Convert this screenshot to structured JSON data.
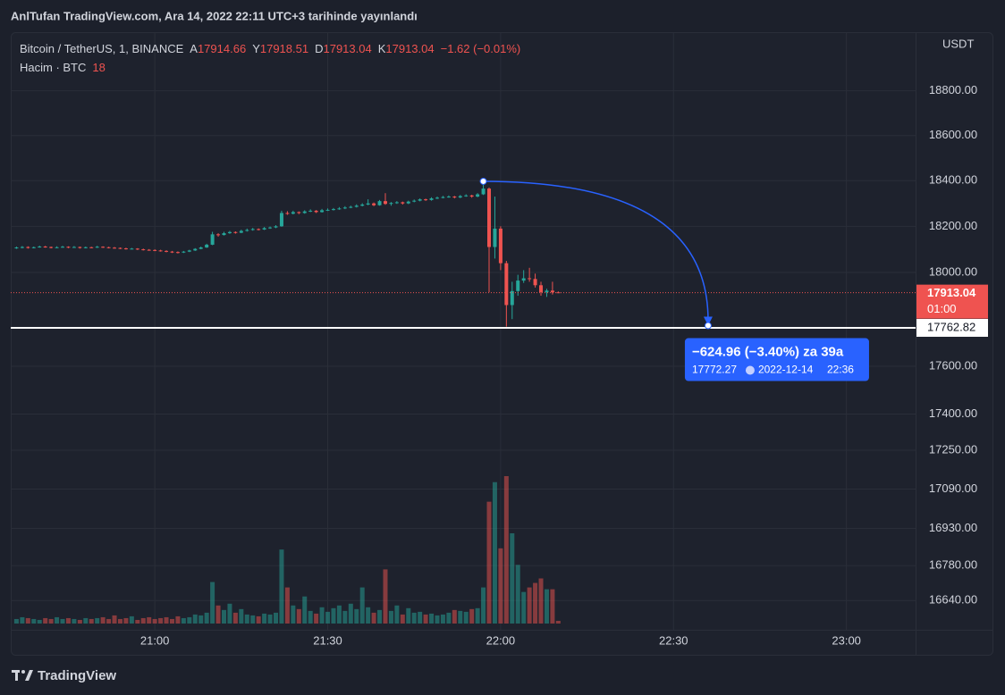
{
  "header": "AnlTufan TradingView.com, Ara 14, 2022 22:11 UTC+3 tarihinde yayınlandı",
  "footer": "TradingView",
  "chart_data": {
    "type": "candlestick",
    "symbol": "Bitcoin / TetherUS, 1, BINANCE",
    "ohlc_labels": [
      "A",
      "Y",
      "D",
      "K"
    ],
    "change": "−1.62 (−0.01%)",
    "volume_label": "Hacim · BTC",
    "y_axis_label": "USDT",
    "x": [
      "20:36",
      "20:37",
      "20:38",
      "20:39",
      "20:40",
      "20:41",
      "20:42",
      "20:43",
      "20:44",
      "20:45",
      "20:46",
      "20:47",
      "20:48",
      "20:49",
      "20:50",
      "20:51",
      "20:52",
      "20:53",
      "20:54",
      "20:55",
      "20:56",
      "20:57",
      "20:58",
      "20:59",
      "21:00",
      "21:01",
      "21:02",
      "21:03",
      "21:04",
      "21:05",
      "21:06",
      "21:07",
      "21:08",
      "21:09",
      "21:10",
      "21:11",
      "21:12",
      "21:13",
      "21:14",
      "21:15",
      "21:16",
      "21:17",
      "21:18",
      "21:19",
      "21:20",
      "21:21",
      "21:22",
      "21:23",
      "21:24",
      "21:25",
      "21:26",
      "21:27",
      "21:28",
      "21:29",
      "21:30",
      "21:31",
      "21:32",
      "21:33",
      "21:34",
      "21:35",
      "21:36",
      "21:37",
      "21:38",
      "21:39",
      "21:40",
      "21:41",
      "21:42",
      "21:43",
      "21:44",
      "21:45",
      "21:46",
      "21:47",
      "21:48",
      "21:49",
      "21:50",
      "21:51",
      "21:52",
      "21:53",
      "21:54",
      "21:55",
      "21:56",
      "21:57",
      "21:58",
      "21:59",
      "22:00",
      "22:01",
      "22:02",
      "22:03",
      "22:04",
      "22:05",
      "22:06",
      "22:07",
      "22:08",
      "22:09",
      "22:10"
    ],
    "ohlc": [
      [
        18105,
        18112,
        18102,
        18108
      ],
      [
        18108,
        18114,
        18104,
        18110
      ],
      [
        18110,
        18113,
        18103,
        18106
      ],
      [
        18106,
        18112,
        18104,
        18109
      ],
      [
        18109,
        18116,
        18107,
        18112
      ],
      [
        18112,
        18115,
        18107,
        18110
      ],
      [
        18110,
        18112,
        18104,
        18107
      ],
      [
        18107,
        18113,
        18105,
        18109
      ],
      [
        18109,
        18115,
        18107,
        18111
      ],
      [
        18111,
        18113,
        18105,
        18108
      ],
      [
        18108,
        18114,
        18106,
        18110
      ],
      [
        18110,
        18112,
        18103,
        18106
      ],
      [
        18106,
        18112,
        18104,
        18109
      ],
      [
        18109,
        18111,
        18105,
        18108
      ],
      [
        18108,
        18115,
        18106,
        18111
      ],
      [
        18111,
        18113,
        18106,
        18109
      ],
      [
        18109,
        18111,
        18104,
        18107
      ],
      [
        18107,
        18110,
        18103,
        18106
      ],
      [
        18106,
        18108,
        18101,
        18104
      ],
      [
        18104,
        18107,
        18099,
        18102
      ],
      [
        18102,
        18106,
        18100,
        18103
      ],
      [
        18103,
        18105,
        18097,
        18100
      ],
      [
        18100,
        18103,
        18095,
        18098
      ],
      [
        18098,
        18101,
        18094,
        18097
      ],
      [
        18097,
        18100,
        18092,
        18095
      ],
      [
        18095,
        18098,
        18090,
        18093
      ],
      [
        18093,
        18096,
        18087,
        18090
      ],
      [
        18090,
        18093,
        18084,
        18088
      ],
      [
        18088,
        18091,
        18082,
        18086
      ],
      [
        18086,
        18093,
        18084,
        18090
      ],
      [
        18090,
        18098,
        18088,
        18095
      ],
      [
        18095,
        18105,
        18093,
        18102
      ],
      [
        18102,
        18112,
        18100,
        18108
      ],
      [
        18108,
        18124,
        18106,
        18120
      ],
      [
        18120,
        18176,
        18118,
        18165
      ],
      [
        18165,
        18170,
        18155,
        18162
      ],
      [
        18162,
        18176,
        18160,
        18170
      ],
      [
        18170,
        18180,
        18167,
        18175
      ],
      [
        18175,
        18178,
        18168,
        18172
      ],
      [
        18172,
        18185,
        18170,
        18180
      ],
      [
        18180,
        18190,
        18177,
        18184
      ],
      [
        18184,
        18193,
        18181,
        18188
      ],
      [
        18188,
        18191,
        18182,
        18186
      ],
      [
        18186,
        18197,
        18184,
        18192
      ],
      [
        18192,
        18199,
        18189,
        18195
      ],
      [
        18195,
        18205,
        18192,
        18200
      ],
      [
        18200,
        18268,
        18198,
        18258
      ],
      [
        18258,
        18266,
        18250,
        18255
      ],
      [
        18255,
        18268,
        18252,
        18262
      ],
      [
        18262,
        18265,
        18253,
        18258
      ],
      [
        18258,
        18270,
        18255,
        18265
      ],
      [
        18265,
        18274,
        18262,
        18268
      ],
      [
        18268,
        18271,
        18258,
        18262
      ],
      [
        18262,
        18276,
        18260,
        18270
      ],
      [
        18270,
        18278,
        18267,
        18272
      ],
      [
        18272,
        18280,
        18269,
        18275
      ],
      [
        18275,
        18284,
        18272,
        18278
      ],
      [
        18278,
        18288,
        18275,
        18282
      ],
      [
        18282,
        18290,
        18279,
        18285
      ],
      [
        18285,
        18296,
        18282,
        18290
      ],
      [
        18290,
        18301,
        18287,
        18295
      ],
      [
        18295,
        18318,
        18292,
        18300
      ],
      [
        18300,
        18304,
        18288,
        18292
      ],
      [
        18292,
        18315,
        18290,
        18310
      ],
      [
        18310,
        18345,
        18294,
        18298
      ],
      [
        18298,
        18306,
        18290,
        18302
      ],
      [
        18302,
        18310,
        18298,
        18305
      ],
      [
        18305,
        18308,
        18295,
        18300
      ],
      [
        18300,
        18312,
        18297,
        18308
      ],
      [
        18308,
        18317,
        18305,
        18312
      ],
      [
        18312,
        18322,
        18309,
        18318
      ],
      [
        18318,
        18321,
        18311,
        18315
      ],
      [
        18315,
        18327,
        18312,
        18322
      ],
      [
        18322,
        18330,
        18319,
        18325
      ],
      [
        18325,
        18333,
        18322,
        18328
      ],
      [
        18328,
        18335,
        18325,
        18330
      ],
      [
        18330,
        18333,
        18322,
        18326
      ],
      [
        18326,
        18337,
        18323,
        18332
      ],
      [
        18332,
        18340,
        18329,
        18335
      ],
      [
        18335,
        18338,
        18325,
        18330
      ],
      [
        18330,
        18345,
        18327,
        18340
      ],
      [
        18340,
        18397.23,
        18337,
        18365
      ],
      [
        18365,
        18370,
        17915,
        18110
      ],
      [
        18110,
        18330,
        18060,
        18190
      ],
      [
        18190,
        18200,
        18010,
        18040
      ],
      [
        18040,
        18050,
        17768,
        17860
      ],
      [
        17860,
        17960,
        17800,
        17920
      ],
      [
        17920,
        17990,
        17900,
        17965
      ],
      [
        17965,
        18010,
        17955,
        17975
      ],
      [
        17975,
        18020,
        17960,
        17972
      ],
      [
        17972,
        17995,
        17935,
        17945
      ],
      [
        17945,
        17960,
        17900,
        17915
      ],
      [
        17915,
        17930,
        17895,
        17922
      ],
      [
        17922,
        17960,
        17905,
        17914.66
      ],
      [
        17914.66,
        17918.51,
        17913.04,
        17913.04
      ]
    ],
    "volumes": [
      30,
      42,
      36,
      30,
      24,
      36,
      30,
      42,
      30,
      36,
      30,
      24,
      36,
      30,
      36,
      42,
      30,
      54,
      30,
      36,
      48,
      24,
      36,
      42,
      30,
      36,
      42,
      30,
      48,
      36,
      42,
      60,
      54,
      72,
      276,
      120,
      90,
      132,
      72,
      96,
      60,
      54,
      48,
      66,
      60,
      72,
      492,
      240,
      120,
      96,
      180,
      84,
      66,
      108,
      78,
      102,
      120,
      84,
      132,
      96,
      240,
      108,
      72,
      90,
      360,
      84,
      120,
      60,
      102,
      72,
      78,
      60,
      66,
      54,
      60,
      72,
      90,
      84,
      78,
      96,
      102,
      240,
      810,
      940,
      500,
      980,
      600,
      390,
      210,
      240,
      270,
      300,
      228,
      228,
      18
    ],
    "up_color": "#26a69a",
    "down_color": "#ef5350",
    "log_scale": true,
    "ylim": [
      16524,
      19066
    ],
    "yticks": [
      {
        "value": 18800,
        "label": "18800.00"
      },
      {
        "value": 18600,
        "label": "18600.00"
      },
      {
        "value": 18400,
        "label": "18400.00"
      },
      {
        "value": 18200,
        "label": "18200.00"
      },
      {
        "value": 18000,
        "label": "18000.00"
      },
      {
        "value": 17600,
        "label": "17600.00"
      },
      {
        "value": 17400,
        "label": "17400.00"
      },
      {
        "value": 17250,
        "label": "17250.00"
      },
      {
        "value": 17090,
        "label": "17090.00"
      },
      {
        "value": 16930,
        "label": "16930.00"
      },
      {
        "value": 16780,
        "label": "16780.00"
      },
      {
        "value": 16640,
        "label": "16640.00"
      }
    ],
    "xlim": [
      "20:35",
      "23:12"
    ],
    "xticks": [
      "21:00",
      "21:30",
      "22:00",
      "22:30",
      "23:00"
    ],
    "grid": true,
    "hline": 17762.82,
    "countdown": "01:00",
    "measure": {
      "label": "−624.96 (−3.40%) za 39a",
      "price": 17772.27,
      "date": "2022-12-14",
      "time": "22:36"
    }
  }
}
